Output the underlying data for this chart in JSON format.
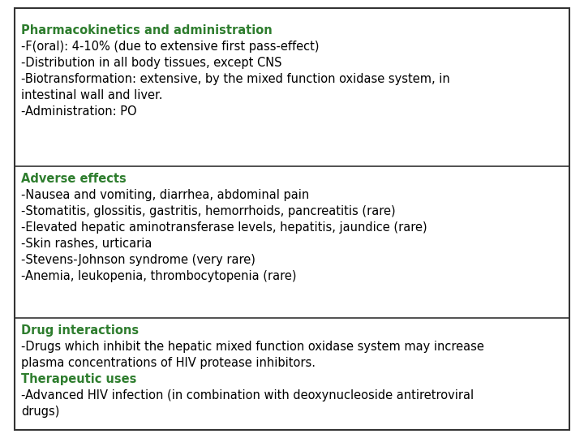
{
  "background_color": "#ffffff",
  "border_color": "#333333",
  "divider_color": "#333333",
  "heading_color": "#2e7d2e",
  "text_color": "#000000",
  "font_size": 10.5,
  "heading_font_size": 10.5,
  "sections": [
    {
      "heading": "Pharmacokinetics and administration",
      "lines": [
        "-F(oral): 4-10% (due to extensive first pass-effect)",
        "-Distribution in all body tissues, except CNS",
        "-Biotransformation: extensive, by the mixed function oxidase system, in",
        "intestinal wall and liver.",
        "-Administration: PO"
      ]
    },
    {
      "heading": "Adverse effects",
      "lines": [
        "-Nausea and vomiting, diarrhea, abdominal pain",
        "-Stomatitis, glossitis, gastritis, hemorrhoids, pancreatitis (rare)",
        "-Elevated hepatic aminotransferase levels, hepatitis, jaundice (rare)",
        "-Skin rashes, urticaria",
        "-Stevens-Johnson syndrome (very rare)",
        "-Anemia, leukopenia, thrombocytopenia (rare)"
      ]
    },
    {
      "heading": "Drug interactions",
      "lines": [
        "-Drugs which inhibit the hepatic mixed function oxidase system may increase",
        "plasma concentrations of HIV protease inhibitors."
      ],
      "sub_heading": "Therapeutic uses",
      "sub_lines": [
        "-Advanced HIV infection (in combination with deoxynucleoside antiretroviral",
        "drugs)"
      ]
    }
  ]
}
